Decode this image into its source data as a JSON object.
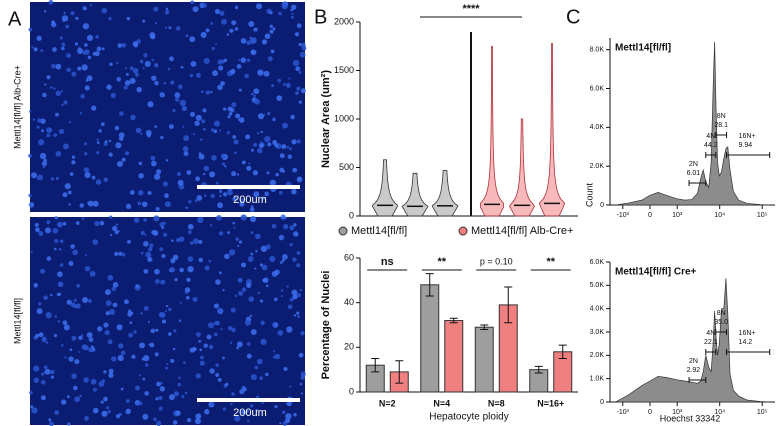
{
  "panel_labels": [
    "A",
    "B",
    "C"
  ],
  "images": [
    {
      "label": "Mettl14[fl/fl] Alb-Cre+",
      "scale_bar": "200um"
    },
    {
      "label": "Mettl14[fl/fl]",
      "scale_bar": "200um"
    }
  ],
  "chart_data": [
    {
      "type": "violin",
      "y_label": "Nuclear Area (um²)",
      "ylim": [
        0,
        2000
      ],
      "yticks": [
        0,
        500,
        1000,
        1500,
        2000
      ],
      "significance": "****",
      "series": [
        {
          "name": "Mettl14[fl/fl]",
          "color": "#9e9e9e",
          "values": [
            580,
            440,
            470
          ],
          "medians": [
            110,
            100,
            105
          ]
        },
        {
          "name": "Mettl14[fl/fl] Alb-Cre+",
          "color": "#f08080",
          "values": [
            1750,
            1000,
            1780
          ],
          "medians": [
            120,
            110,
            130
          ]
        }
      ]
    },
    {
      "type": "bar",
      "y_label": "Percentage of Nuclei",
      "x_label": "Hepatocyte ploidy",
      "categories": [
        "N=2",
        "N=4",
        "N=8",
        "N=16+"
      ],
      "ylim": [
        0,
        60
      ],
      "yticks": [
        0,
        20,
        40,
        60
      ],
      "series": [
        {
          "color": "#9e9e9e",
          "values": [
            12,
            48,
            29,
            10
          ],
          "errors": [
            3,
            5,
            1,
            1.5
          ]
        },
        {
          "color": "#f08080",
          "values": [
            9,
            32,
            39,
            18
          ],
          "errors": [
            5,
            1,
            8,
            3
          ]
        }
      ],
      "annotations": [
        "ns",
        "**",
        "p = 0.10",
        "**"
      ]
    },
    {
      "type": "area",
      "title": "Mettl14[fl/fl]",
      "x_label": "Hoechst 33342",
      "y_label": "Count",
      "color": "#8c8c8c",
      "xlim": [
        -2000,
        200000
      ],
      "xticks": [
        {
          "value": -1000,
          "label": "-10³"
        },
        0,
        {
          "value": 1000,
          "label": "10³"
        },
        {
          "value": 10000,
          "label": "10⁴"
        },
        {
          "value": 100000,
          "label": "10⁵"
        }
      ],
      "ylim": [
        0,
        8600
      ],
      "yticks": [
        0,
        {
          "value": 2000,
          "label": "2.0K"
        },
        {
          "value": 4000,
          "label": "4.0K"
        },
        {
          "value": 6000,
          "label": "6.0K"
        },
        {
          "value": 8000,
          "label": "8.0K"
        }
      ],
      "x": [
        -1500,
        -800,
        -300,
        0,
        300,
        600,
        1000,
        1500,
        2200,
        3000,
        3600,
        4100,
        4700,
        5500,
        6300,
        7000,
        7600,
        8200,
        8900,
        9800,
        11000,
        12500,
        14000,
        15500,
        17500,
        21000,
        28000,
        45000,
        90000,
        150000
      ],
      "values": [
        0,
        100,
        250,
        500,
        650,
        500,
        320,
        250,
        280,
        600,
        1400,
        1800,
        1200,
        900,
        2200,
        6000,
        8400,
        5000,
        2200,
        1500,
        1700,
        2400,
        2900,
        3000,
        1800,
        700,
        250,
        80,
        20,
        0
      ],
      "gates": [
        {
          "label": "2N",
          "value": 6.01,
          "range": [
            1900,
            4700
          ]
        },
        {
          "label": "4N",
          "value": 44.2,
          "range": [
            4700,
            8100
          ]
        },
        {
          "label": "8N",
          "value": 28.1,
          "range": [
            8100,
            14500
          ]
        },
        {
          "label": "16N+",
          "value": 9.94,
          "range": [
            14500,
            150000
          ]
        }
      ]
    },
    {
      "type": "area",
      "title": "Mettl14[fl/fl] Cre+",
      "x_label": "Hoechst 33342",
      "y_label": "Count",
      "color": "#8c8c8c",
      "xlim": [
        -2000,
        200000
      ],
      "xticks": [
        {
          "value": -1000,
          "label": "-10³"
        },
        0,
        {
          "value": 1000,
          "label": "10³"
        },
        {
          "value": 10000,
          "label": "10⁴"
        },
        {
          "value": 100000,
          "label": "10⁵"
        }
      ],
      "ylim": [
        0,
        6000
      ],
      "yticks": [
        0,
        {
          "value": 1000,
          "label": "1.0K"
        },
        {
          "value": 2000,
          "label": "2.0K"
        },
        {
          "value": 3000,
          "label": "3.0K"
        },
        {
          "value": 4000,
          "label": "4.0K"
        },
        {
          "value": 5000,
          "label": "5.0K"
        },
        {
          "value": 6000,
          "label": "6.0K"
        }
      ],
      "x": [
        -1500,
        -800,
        -300,
        0,
        300,
        600,
        1000,
        1500,
        2200,
        3000,
        3600,
        4100,
        4700,
        5500,
        6300,
        7000,
        7600,
        8200,
        8900,
        9800,
        11000,
        12500,
        14000,
        15500,
        17500,
        21000,
        28000,
        45000,
        90000,
        150000
      ],
      "values": [
        0,
        300,
        700,
        900,
        1100,
        1050,
        950,
        900,
        850,
        800,
        900,
        1300,
        2000,
        1500,
        1300,
        2500,
        3900,
        2800,
        2000,
        2500,
        4000,
        4000,
        5300,
        3800,
        1200,
        500,
        250,
        80,
        20,
        0
      ],
      "gates": [
        {
          "label": "2N",
          "value": 2.92,
          "range": [
            1900,
            4700
          ]
        },
        {
          "label": "4N",
          "value": 22.1,
          "range": [
            4700,
            8100
          ]
        },
        {
          "label": "8N",
          "value": 35,
          "value_label": "35.0",
          "range": [
            8100,
            14500
          ]
        },
        {
          "label": "16N+",
          "value": 14.2,
          "range": [
            14500,
            150000
          ]
        }
      ]
    }
  ]
}
